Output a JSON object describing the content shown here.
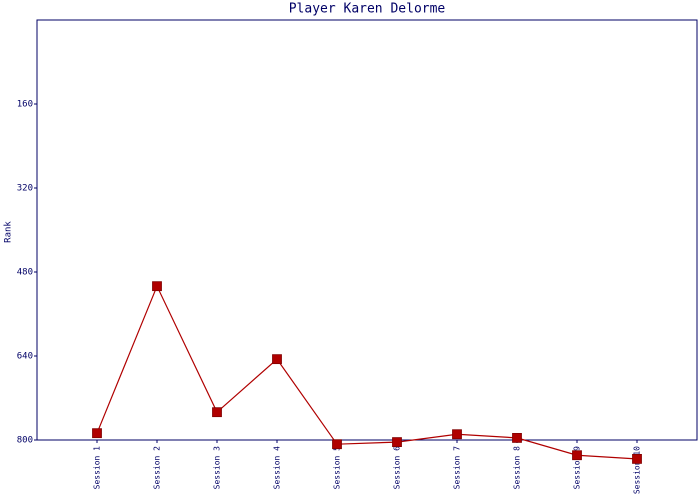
{
  "chart_data": {
    "type": "line",
    "title": "Player Karen Delorme",
    "y_label": "Rank",
    "categories": [
      "Session 1",
      "Session 2",
      "Session 3",
      "Session 4",
      "Session 5",
      "Session 6",
      "Session 7",
      "Session 8",
      "Session 9",
      "Session 10"
    ],
    "series": [
      {
        "name": "Rank",
        "color": "#b00000",
        "values": [
          787,
          507,
          747,
          646,
          808,
          804,
          789,
          796,
          829,
          836
        ]
      }
    ],
    "ylim": [
      800,
      0
    ],
    "yticks": [
      160,
      320,
      480,
      640,
      800
    ],
    "grid": false
  }
}
